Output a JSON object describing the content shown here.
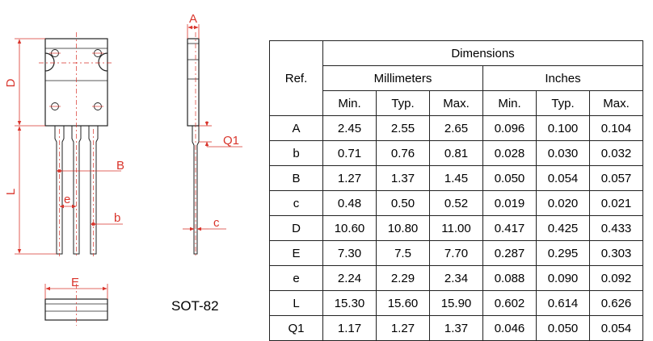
{
  "drawing": {
    "labels": {
      "A": "A",
      "D": "D",
      "L": "L",
      "B": "B",
      "e": "e",
      "b": "b",
      "Q1": "Q1",
      "c": "c",
      "E": "E"
    },
    "package_name": "SOT-82",
    "colors": {
      "outline": "#222222",
      "dimension": "#d9342b"
    }
  },
  "table": {
    "ref_header": "Ref.",
    "group_header": "Dimensions",
    "unit_headers": [
      "Millimeters",
      "Inches"
    ],
    "column_headers": [
      "Min.",
      "Typ.",
      "Max.",
      "Min.",
      "Typ.",
      "Max."
    ],
    "rows": [
      {
        "ref": "A",
        "values": [
          "2.45",
          "2.55",
          "2.65",
          "0.096",
          "0.100",
          "0.104"
        ]
      },
      {
        "ref": "b",
        "values": [
          "0.71",
          "0.76",
          "0.81",
          "0.028",
          "0.030",
          "0.032"
        ]
      },
      {
        "ref": "B",
        "values": [
          "1.27",
          "1.37",
          "1.45",
          "0.050",
          "0.054",
          "0.057"
        ]
      },
      {
        "ref": "c",
        "values": [
          "0.48",
          "0.50",
          "0.52",
          "0.019",
          "0.020",
          "0.021"
        ]
      },
      {
        "ref": "D",
        "values": [
          "10.60",
          "10.80",
          "11.00",
          "0.417",
          "0.425",
          "0.433"
        ]
      },
      {
        "ref": "E",
        "values": [
          "7.30",
          "7.5",
          "7.70",
          "0.287",
          "0.295",
          "0.303"
        ]
      },
      {
        "ref": "e",
        "values": [
          "2.24",
          "2.29",
          "2.34",
          "0.088",
          "0.090",
          "0.092"
        ]
      },
      {
        "ref": "L",
        "values": [
          "15.30",
          "15.60",
          "15.90",
          "0.602",
          "0.614",
          "0.626"
        ]
      },
      {
        "ref": "Q1",
        "values": [
          "1.17",
          "1.27",
          "1.37",
          "0.046",
          "0.050",
          "0.054"
        ]
      }
    ]
  }
}
